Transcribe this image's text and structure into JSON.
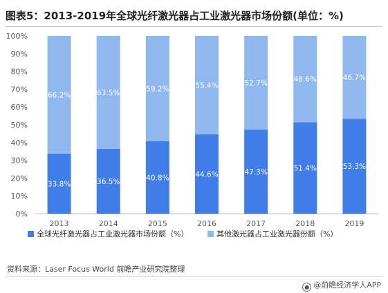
{
  "title": "图表5：2013-2019年全球光纤激光器占工业激光器市场份额(单位：%)",
  "source": "资料来源：Laser Focus World 前瞻产业研究院整理",
  "credit": "@前瞻经济学人APP",
  "chart_data": {
    "type": "bar",
    "stacked": true,
    "categories": [
      "2013",
      "2014",
      "2015",
      "2016",
      "2017",
      "2018",
      "2019"
    ],
    "series": [
      {
        "name": "全球光纤激光器占工业激光器市场份额（%）",
        "color": "#3f7ee8",
        "values": [
          33.8,
          36.5,
          40.8,
          44.6,
          47.3,
          51.4,
          53.3
        ],
        "labels": [
          "33.8%",
          "36.5%",
          "40.8%",
          "44.6%",
          "47.3%",
          "51.4%",
          "53.3%"
        ]
      },
      {
        "name": "其他激光器占工业激光器份额（%）",
        "color": "#8fb8ee",
        "values": [
          66.2,
          63.5,
          59.2,
          55.4,
          52.7,
          48.6,
          46.7
        ],
        "labels": [
          "66.2%",
          "63.5%",
          "59.2%",
          "55.4%",
          "52.7%",
          "48.6%",
          "46.7%"
        ]
      }
    ],
    "ylim": [
      0,
      100
    ],
    "yticks": [
      "0%",
      "10%",
      "20%",
      "30%",
      "40%",
      "50%",
      "60%",
      "70%",
      "80%",
      "90%",
      "100%"
    ],
    "grid": false,
    "legend": "bottom"
  }
}
